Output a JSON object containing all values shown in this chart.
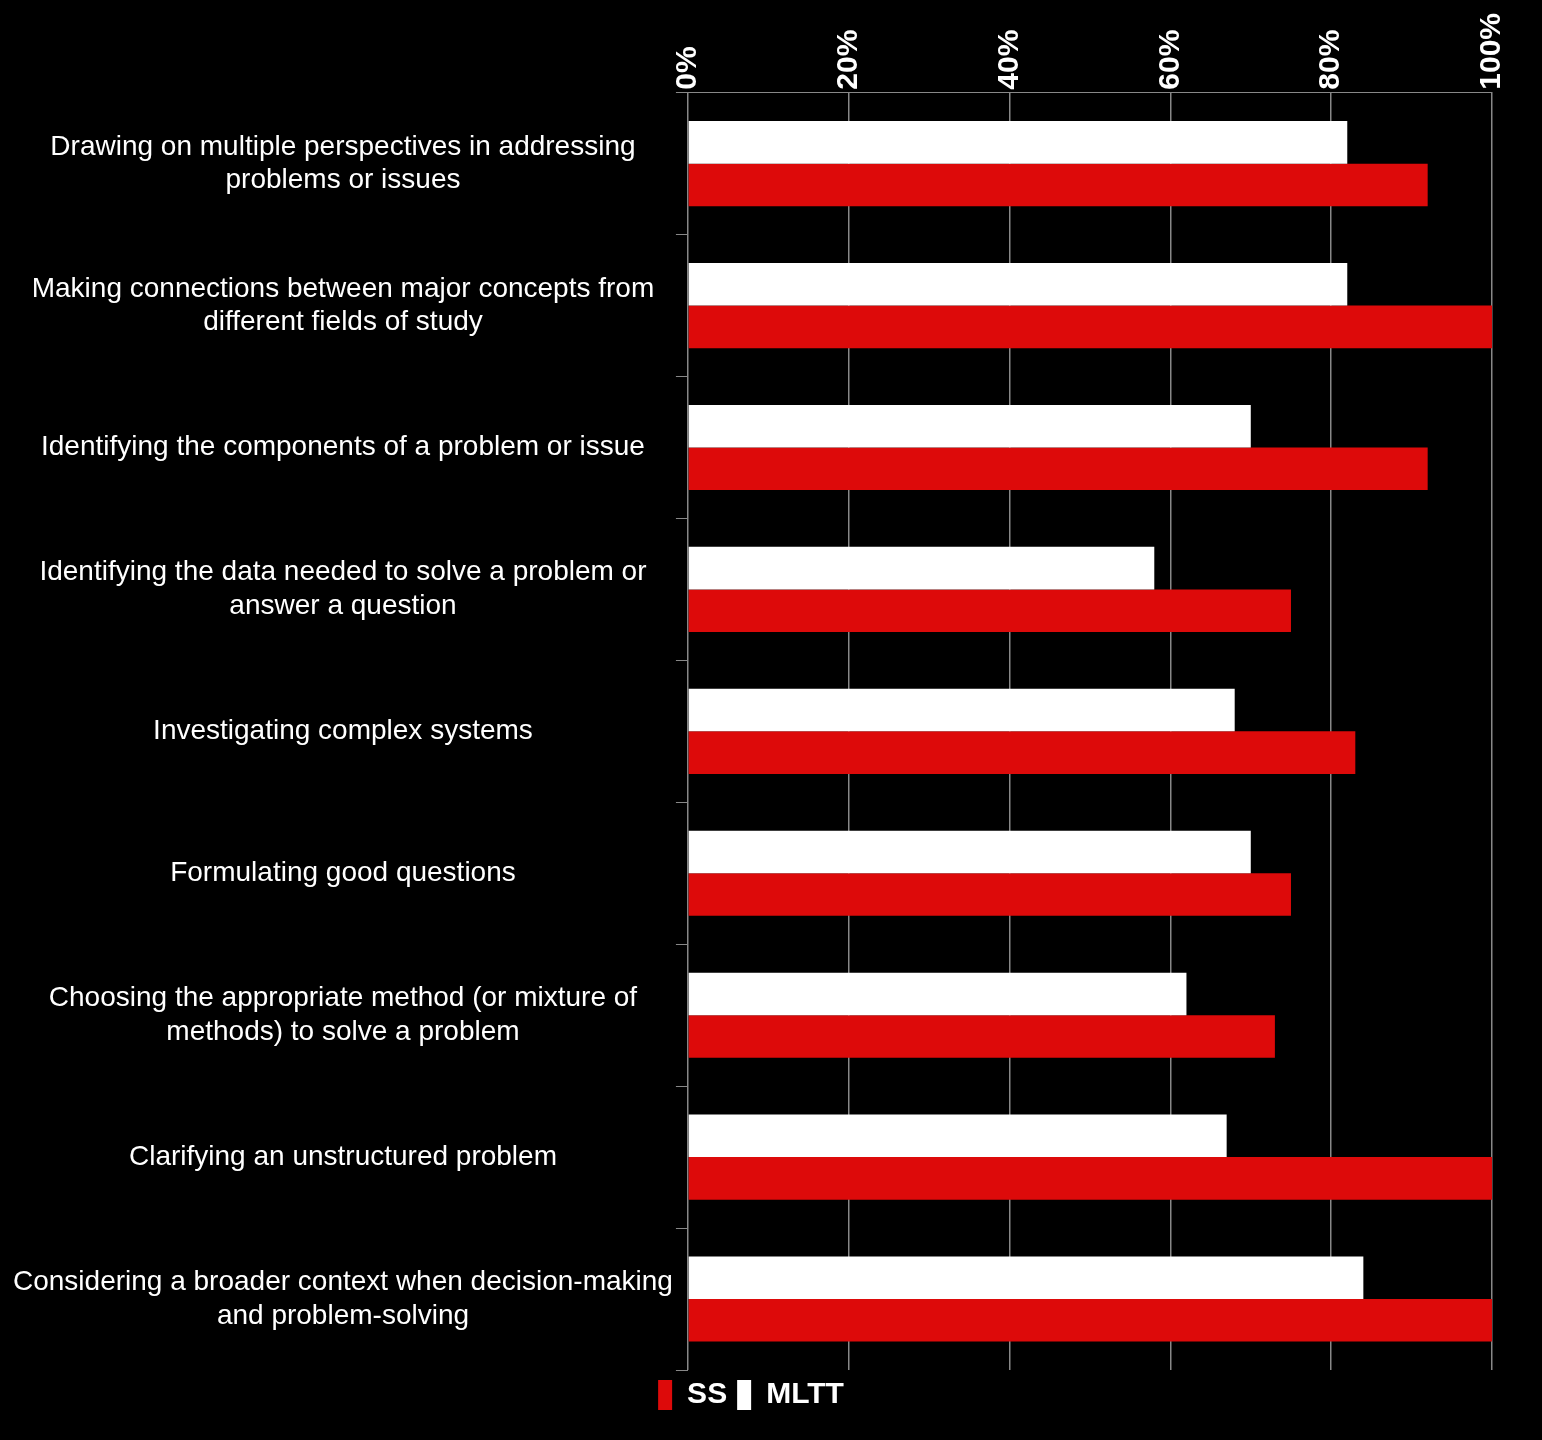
{
  "chart_data": {
    "type": "bar",
    "orientation": "horizontal",
    "categories": [
      "Drawing on multiple perspectives in addressing problems or issues",
      "Making connections between major concepts from different fields of study",
      "Identifying the components of a problem or issue",
      "Identifying the data needed to solve a problem or answer a question",
      "Investigating complex systems",
      "Formulating good questions",
      "Choosing the appropriate method (or mixture of methods) to solve a problem",
      "Clarifying an unstructured problem",
      "Considering a broader context when decision-making and problem-solving"
    ],
    "series": [
      {
        "name": "MLTT",
        "color": "#ffffff",
        "values": [
          82,
          82,
          70,
          58,
          68,
          70,
          62,
          67,
          84
        ]
      },
      {
        "name": "SS",
        "color": "#dd0a0a",
        "values": [
          92,
          100,
          92,
          75,
          83,
          75,
          73,
          100,
          100
        ]
      }
    ],
    "xlim": [
      0,
      100
    ],
    "xticks": [
      {
        "value": 0,
        "label": "0%"
      },
      {
        "value": 20,
        "label": "20%"
      },
      {
        "value": 40,
        "label": "40%"
      },
      {
        "value": 60,
        "label": "60%"
      },
      {
        "value": 80,
        "label": "80%"
      },
      {
        "value": 100,
        "label": "100%"
      }
    ],
    "grid": "x",
    "legend": "bottom"
  }
}
